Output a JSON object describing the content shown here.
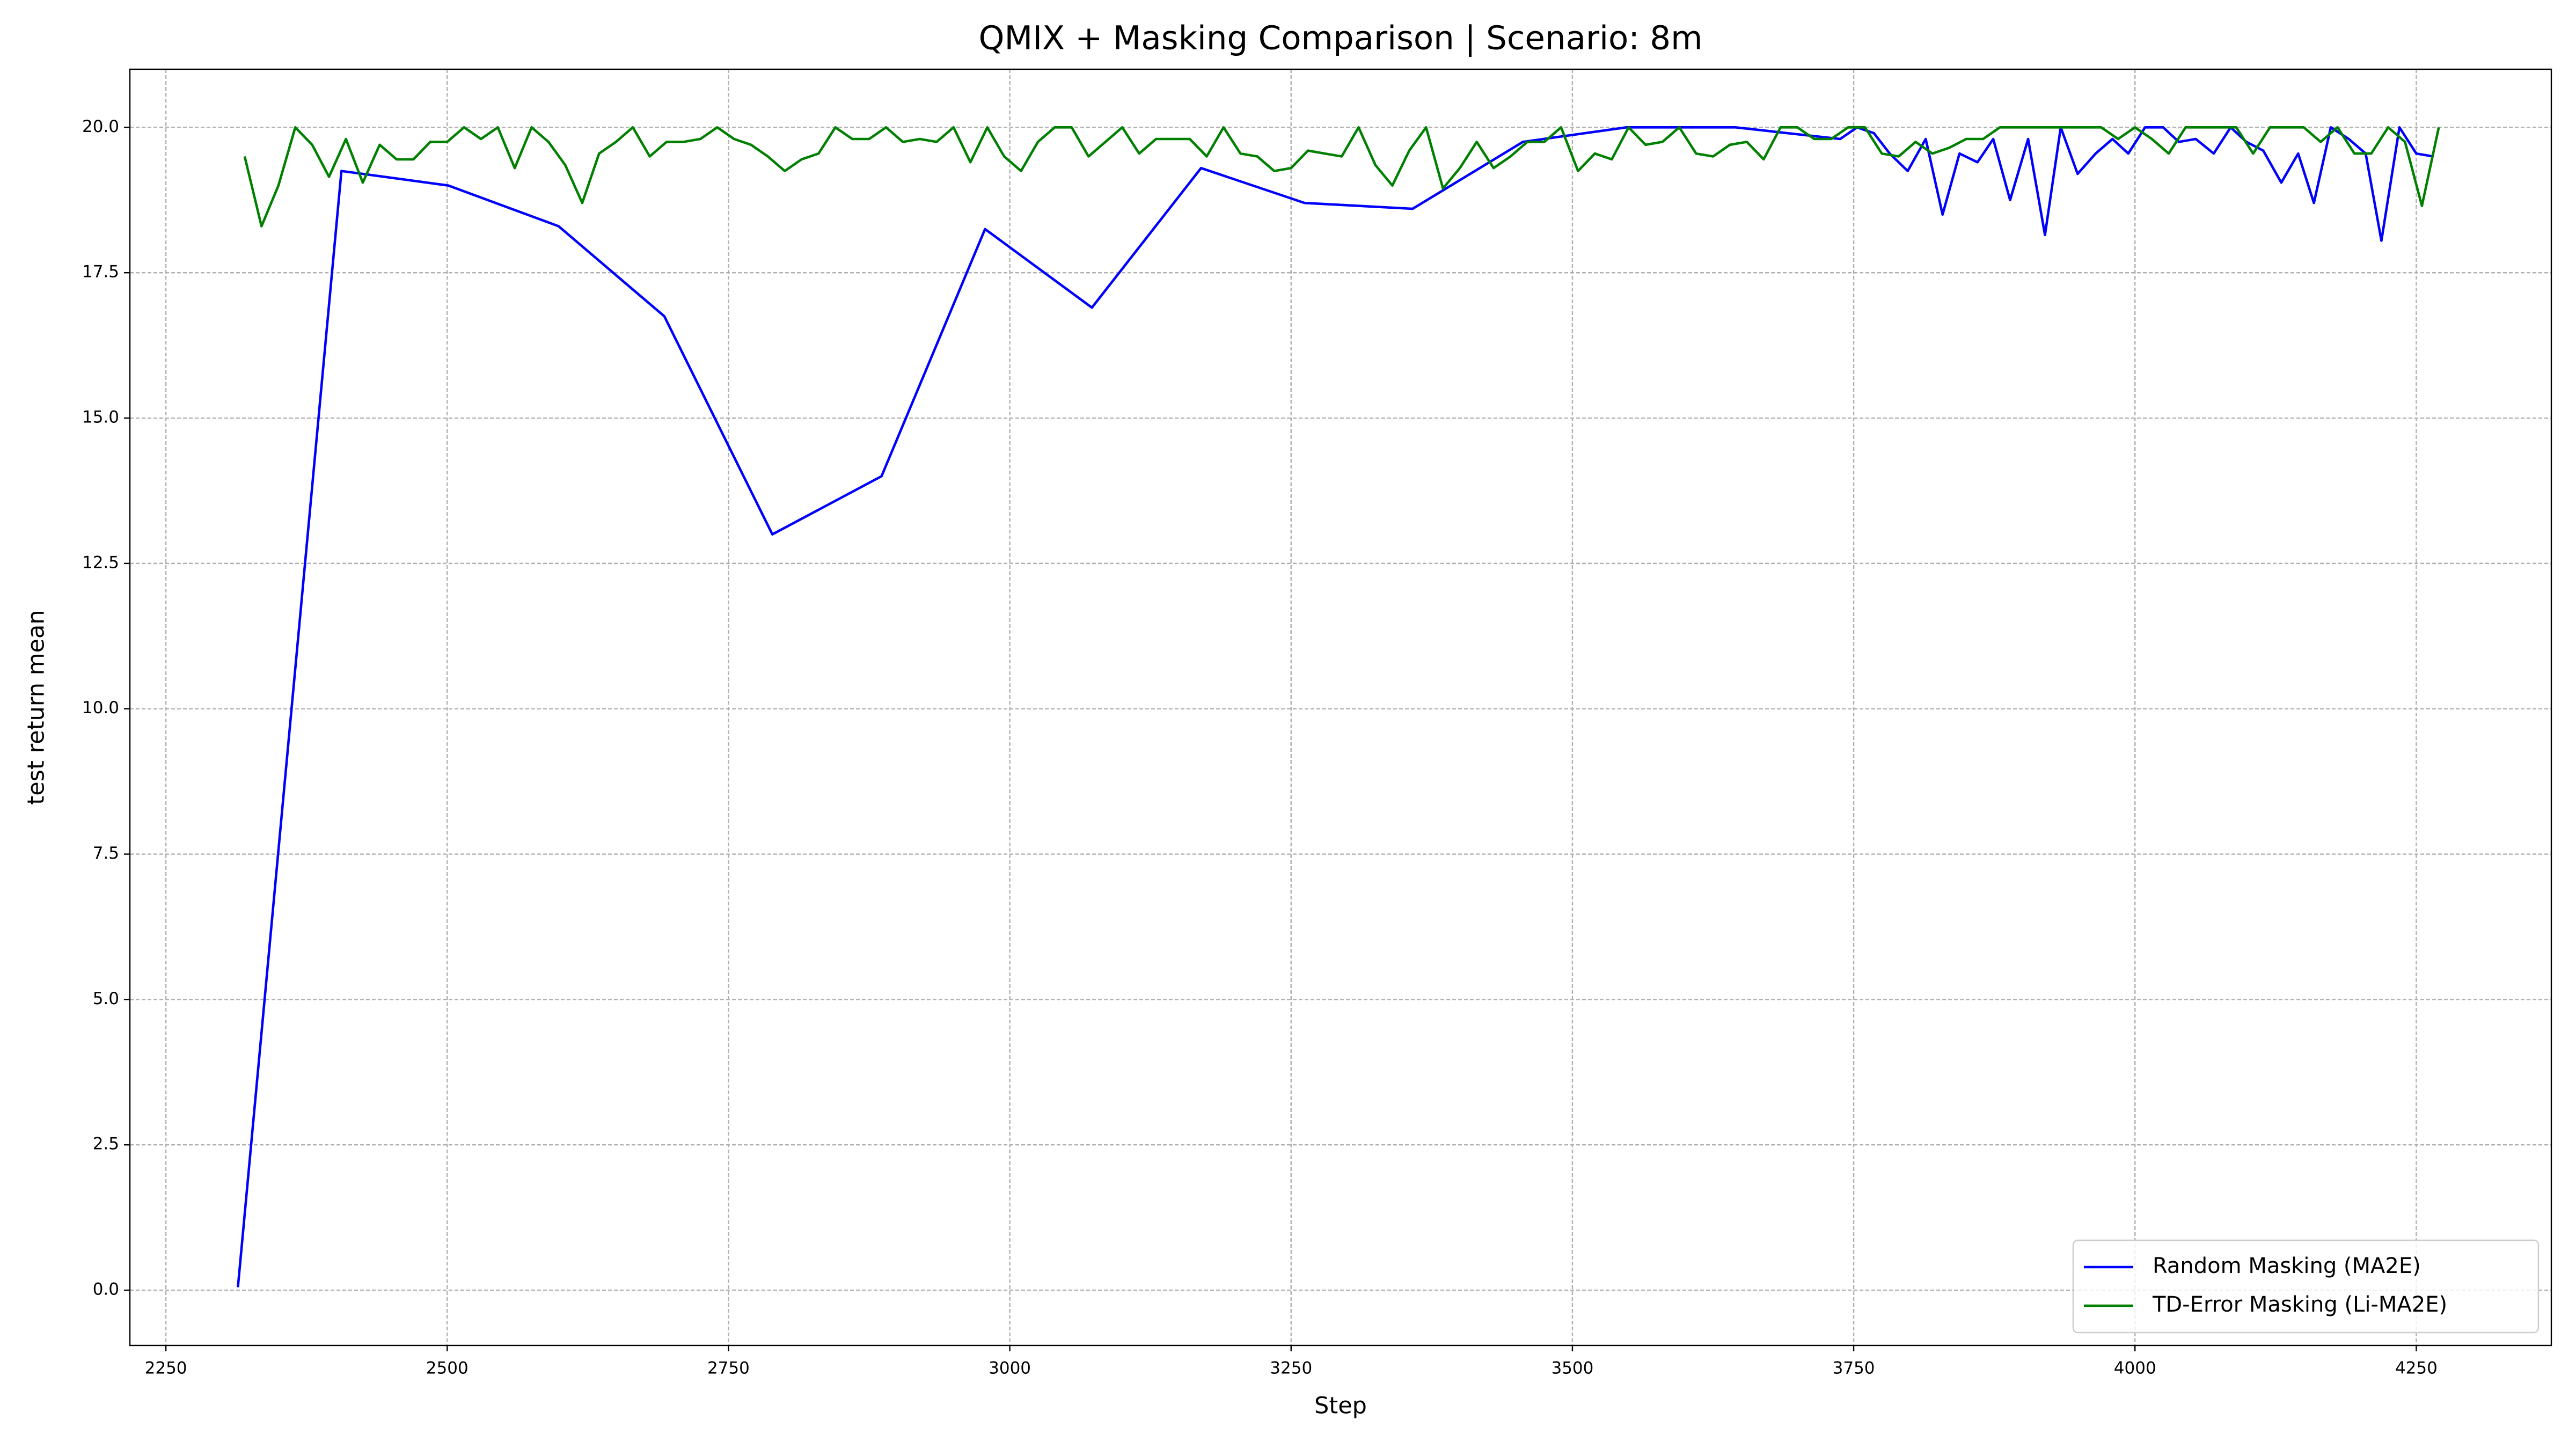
{
  "chart_data": {
    "type": "line",
    "title": "QMIX + Masking Comparison | Scenario: 8m",
    "x_label": "Step",
    "y_label": "test return mean",
    "xlim": [
      2218,
      4370
    ],
    "ylim": [
      -0.95,
      21.0
    ],
    "xticks": [
      2250,
      2500,
      2750,
      3000,
      3250,
      3500,
      3750,
      4000,
      4250
    ],
    "yticks": [
      {
        "value": 0,
        "label": "0.0"
      },
      2.5,
      {
        "value": 5,
        "label": "5.0"
      },
      7.5,
      {
        "value": 10,
        "label": "10.0"
      },
      12.5,
      {
        "value": 15,
        "label": "15.0"
      },
      17.5,
      {
        "value": 20,
        "label": "20.0"
      }
    ],
    "grid": true,
    "legend": "lower right",
    "series": [
      {
        "name": "Random Masking (MA2E)",
        "color": "#0000ff",
        "x": [
          2314,
          2406,
          2501,
          2599,
          2693,
          2789,
          2886,
          2978,
          3073,
          3170,
          3262,
          3358,
          3456,
          3548,
          3645,
          3738,
          3753,
          3768,
          3782,
          3798,
          3814,
          3829,
          3844,
          3860,
          3874,
          3889,
          3905,
          3920,
          3934,
          3949,
          3965,
          3980,
          3994,
          4009,
          4025,
          4039,
          4054,
          4070,
          4085,
          4099,
          4114,
          4130,
          4145,
          4159,
          4174,
          4190,
          4205,
          4219,
          4235,
          4250,
          4265
        ],
        "values": [
          0.05,
          19.25,
          19.0,
          18.3,
          16.75,
          13.0,
          14.0,
          18.25,
          16.9,
          19.3,
          18.7,
          18.6,
          19.75,
          20.0,
          20.0,
          19.8,
          20.0,
          19.9,
          19.55,
          19.25,
          19.8,
          18.5,
          19.55,
          19.4,
          19.8,
          18.75,
          19.8,
          18.15,
          20.0,
          19.2,
          19.55,
          19.8,
          19.55,
          20.0,
          20.0,
          19.75,
          19.8,
          19.55,
          20.0,
          19.75,
          19.6,
          19.05,
          19.55,
          18.7,
          20.0,
          19.8,
          19.55,
          18.05,
          20.0,
          19.55,
          19.5
        ]
      },
      {
        "name": "TD-Error Masking (Li-MA2E)",
        "color": "#008000",
        "x": [
          2320,
          2335,
          2350,
          2365,
          2380,
          2395,
          2410,
          2425,
          2440,
          2455,
          2470,
          2485,
          2500,
          2515,
          2530,
          2545,
          2560,
          2575,
          2590,
          2605,
          2620,
          2635,
          2650,
          2665,
          2680,
          2695,
          2710,
          2725,
          2740,
          2755,
          2770,
          2785,
          2800,
          2815,
          2830,
          2845,
          2860,
          2875,
          2890,
          2905,
          2920,
          2935,
          2950,
          2965,
          2980,
          2995,
          3010,
          3025,
          3040,
          3055,
          3070,
          3085,
          3100,
          3115,
          3130,
          3145,
          3160,
          3175,
          3190,
          3205,
          3220,
          3235,
          3250,
          3265,
          3280,
          3295,
          3310,
          3325,
          3340,
          3355,
          3370,
          3385,
          3400,
          3415,
          3430,
          3445,
          3460,
          3475,
          3490,
          3505,
          3520,
          3535,
          3550,
          3565,
          3580,
          3595,
          3610,
          3625,
          3640,
          3655,
          3670,
          3685,
          3700,
          3715,
          3730,
          3745,
          3760,
          3775,
          3790,
          3805,
          3820,
          3835,
          3850,
          3865,
          3880,
          3895,
          3910,
          3925,
          3940,
          3955,
          3970,
          3985,
          4000,
          4015,
          4030,
          4045,
          4060,
          4075,
          4090,
          4105,
          4120,
          4135,
          4150,
          4165,
          4180,
          4195,
          4210,
          4225,
          4240,
          4255,
          4270
        ],
        "values": [
          19.5,
          18.3,
          19.0,
          20.0,
          19.7,
          19.15,
          19.8,
          19.05,
          19.7,
          19.45,
          19.45,
          19.75,
          19.75,
          20.0,
          19.8,
          20.0,
          19.3,
          20.0,
          19.75,
          19.35,
          18.7,
          19.55,
          19.75,
          20.0,
          19.5,
          19.75,
          19.75,
          19.8,
          20.0,
          19.8,
          19.7,
          19.5,
          19.25,
          19.45,
          19.55,
          20.0,
          19.8,
          19.8,
          20.0,
          19.75,
          19.8,
          19.75,
          20.0,
          19.4,
          20.0,
          19.5,
          19.25,
          19.75,
          20.0,
          20.0,
          19.5,
          19.75,
          20.0,
          19.55,
          19.8,
          19.8,
          19.8,
          19.5,
          20.0,
          19.55,
          19.5,
          19.25,
          19.3,
          19.6,
          19.55,
          19.5,
          20.0,
          19.35,
          19.0,
          19.6,
          20.0,
          18.95,
          19.3,
          19.75,
          19.3,
          19.5,
          19.75,
          19.75,
          20.0,
          19.25,
          19.55,
          19.45,
          20.0,
          19.7,
          19.75,
          20.0,
          19.55,
          19.5,
          19.7,
          19.75,
          19.45,
          20.0,
          20.0,
          19.8,
          19.8,
          20.0,
          20.0,
          19.55,
          19.5,
          19.75,
          19.55,
          19.65,
          19.8,
          19.8,
          20.0,
          20.0,
          20.0,
          20.0,
          20.0,
          20.0,
          20.0,
          19.8,
          20.0,
          19.8,
          19.55,
          20.0,
          20.0,
          20.0,
          20.0,
          19.55,
          20.0,
          20.0,
          20.0,
          19.75,
          20.0,
          19.55,
          19.55,
          20.0,
          19.75,
          18.65,
          20.0
        ]
      }
    ]
  }
}
